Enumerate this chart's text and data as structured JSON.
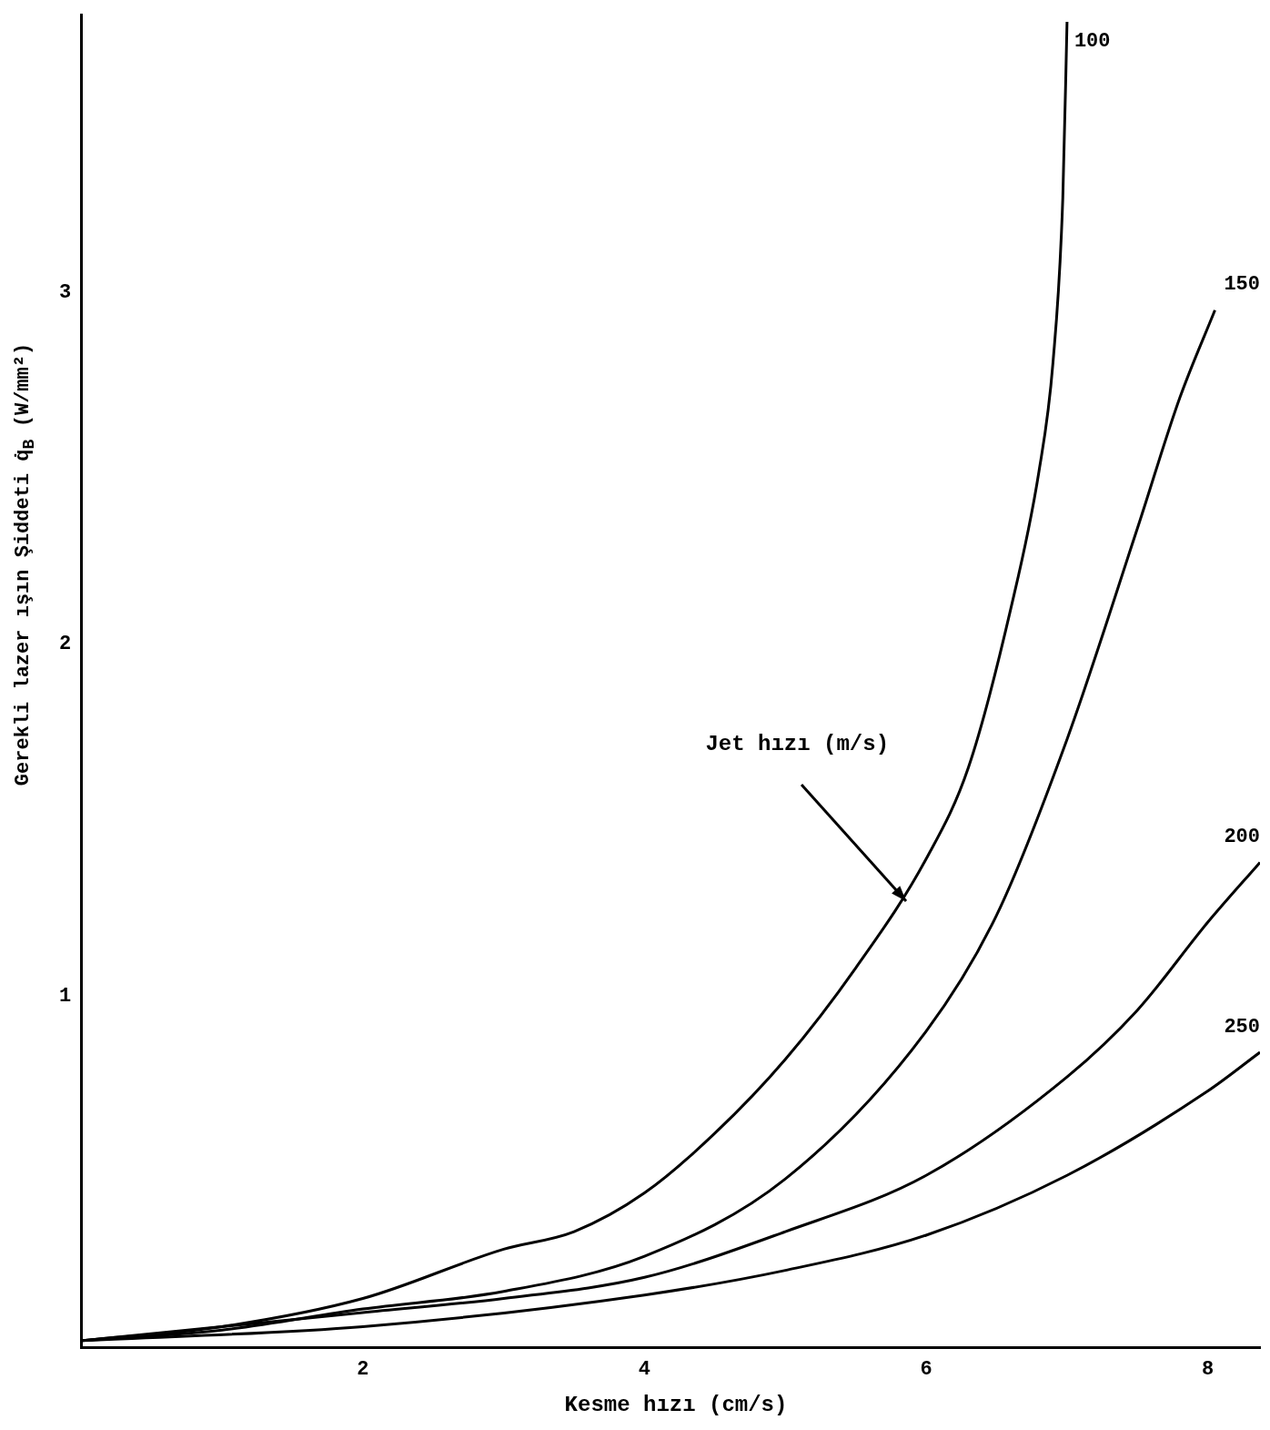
{
  "chart_data": {
    "type": "line",
    "xlabel": "Kesme hızı (cm/s)",
    "ylabel": "Gerekli lazer ışın Şiddeti q̇$_{B}$ (W/mm²)",
    "xlim": [
      0,
      8.37
    ],
    "xticks": [
      2,
      4,
      6,
      8
    ],
    "ylim": [
      0,
      3.79
    ],
    "yticks": [
      1,
      2,
      3
    ],
    "grid": false,
    "legend": false,
    "marker": "none",
    "line_style": "solid",
    "annotations": [
      "Jet hızı (m/s)"
    ],
    "series": [
      {
        "name": "100",
        "color": "#000000",
        "x": [
          0,
          1,
          2,
          3,
          3.5,
          4,
          4.5,
          5,
          5.5,
          6,
          6.3,
          6.6,
          6.8,
          6.9,
          6.97,
          7.0
        ],
        "values": [
          0.02,
          0.06,
          0.14,
          0.28,
          0.33,
          0.44,
          0.61,
          0.82,
          1.08,
          1.39,
          1.65,
          2.1,
          2.49,
          2.8,
          3.27,
          3.77
        ]
      },
      {
        "name": "150",
        "color": "#000000",
        "x": [
          0,
          1,
          2,
          3,
          4,
          5,
          6,
          6.5,
          7,
          7.5,
          7.8,
          8.05
        ],
        "values": [
          0.02,
          0.05,
          0.11,
          0.16,
          0.26,
          0.48,
          0.9,
          1.23,
          1.73,
          2.33,
          2.7,
          2.95
        ]
      },
      {
        "name": "200",
        "color": "#000000",
        "x": [
          0,
          2,
          3,
          4,
          5,
          6,
          7,
          7.5,
          8,
          8.37
        ],
        "values": [
          0.02,
          0.1,
          0.14,
          0.2,
          0.33,
          0.49,
          0.77,
          0.96,
          1.21,
          1.38
        ]
      },
      {
        "name": "250",
        "color": "#000000",
        "x": [
          0,
          2,
          4,
          5,
          6,
          7,
          8,
          8.37
        ],
        "values": [
          0.02,
          0.06,
          0.15,
          0.22,
          0.32,
          0.49,
          0.73,
          0.84
        ]
      }
    ]
  }
}
